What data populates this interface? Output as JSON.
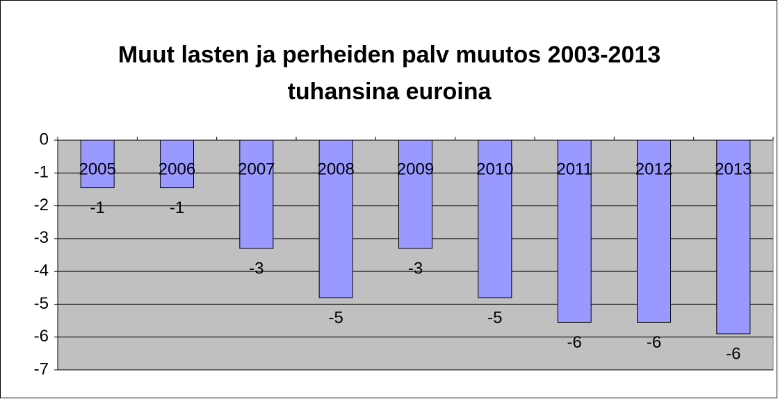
{
  "chart_data": {
    "type": "bar",
    "title": [
      "Muut lasten ja perheiden palv muutos 2003-2013",
      "tuhansina euroina"
    ],
    "categories": [
      "2005",
      "2006",
      "2007",
      "2008",
      "2009",
      "2010",
      "2011",
      "2012",
      "2013"
    ],
    "values": [
      -1.45,
      -1.45,
      -3.3,
      -4.8,
      -3.3,
      -4.8,
      -5.55,
      -5.55,
      -5.9
    ],
    "value_labels": [
      "-1",
      "-1",
      "-3",
      "-5",
      "-3",
      "-5",
      "-6",
      "-6",
      "-6"
    ],
    "color": "#9999ff",
    "ylim": [
      -7,
      0
    ],
    "yticks": [
      0,
      -1,
      -2,
      -3,
      -4,
      -5,
      -6,
      -7
    ],
    "grid": true
  }
}
